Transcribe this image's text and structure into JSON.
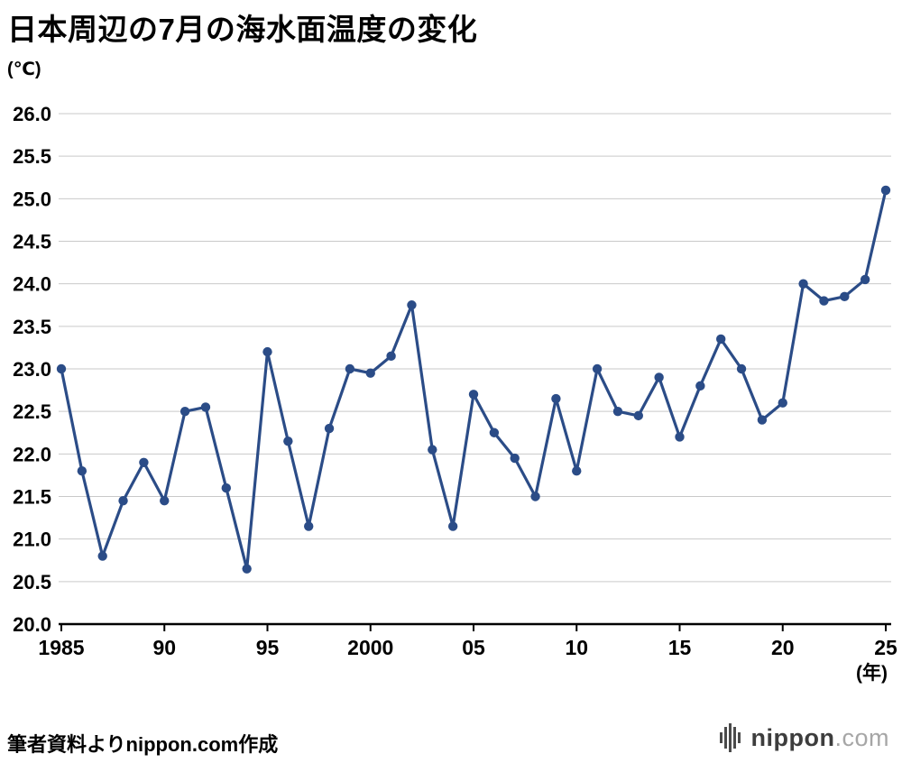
{
  "title": "日本周辺の7月の海水面温度の変化",
  "y_unit_label": "(℃)",
  "x_unit_label": "(年)",
  "footer": {
    "source": "筆者資料よりnippon.com作成"
  },
  "logo": {
    "brand": "nippon",
    "tld": ".com",
    "icon": "nippon-logo-bars"
  },
  "chart_data": {
    "type": "line",
    "title": "日本周辺の7月の海水面温度の変化",
    "xlabel": "(年)",
    "ylabel": "(℃)",
    "x": [
      1985,
      1986,
      1987,
      1988,
      1989,
      1990,
      1991,
      1992,
      1993,
      1994,
      1995,
      1996,
      1997,
      1998,
      1999,
      2000,
      2001,
      2002,
      2003,
      2004,
      2005,
      2006,
      2007,
      2008,
      2009,
      2010,
      2011,
      2012,
      2013,
      2014,
      2015,
      2016,
      2017,
      2018,
      2019,
      2020,
      2021,
      2022,
      2023,
      2024,
      2025
    ],
    "values": [
      23.0,
      21.8,
      20.8,
      21.45,
      21.9,
      21.45,
      22.5,
      22.55,
      21.6,
      20.65,
      23.2,
      22.15,
      21.15,
      22.3,
      23.0,
      22.95,
      23.15,
      23.75,
      22.05,
      21.15,
      22.7,
      22.25,
      21.95,
      21.5,
      22.65,
      21.8,
      23.0,
      22.5,
      22.45,
      22.9,
      22.2,
      22.8,
      23.35,
      23.0,
      22.4,
      22.6,
      24.0,
      23.8,
      23.85,
      24.05,
      25.1
    ],
    "ylim": [
      20.0,
      26.0
    ],
    "y_ticks": [
      20.0,
      20.5,
      21.0,
      21.5,
      22.0,
      22.5,
      23.0,
      23.5,
      24.0,
      24.5,
      25.0,
      25.5,
      26.0
    ],
    "x_tick_years": [
      1985,
      1990,
      1995,
      2000,
      2005,
      2010,
      2015,
      2020,
      2025
    ],
    "x_tick_labels": [
      "1985",
      "90",
      "95",
      "2000",
      "05",
      "10",
      "15",
      "20",
      "25"
    ],
    "line_color": "#2b4c87",
    "grid_color": "#c9c9c9",
    "axis_color": "#000000",
    "grid": true,
    "legend": "none"
  }
}
